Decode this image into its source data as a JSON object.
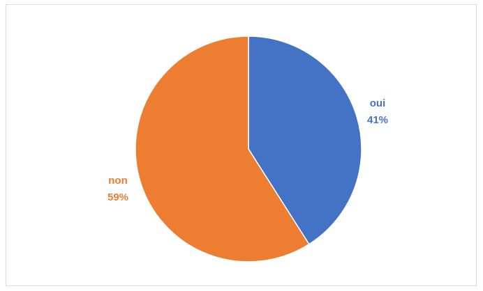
{
  "chart_data": {
    "type": "pie",
    "categories": [
      "oui",
      "non"
    ],
    "values": [
      41,
      59
    ],
    "value_labels": [
      "41%",
      "59%"
    ],
    "colors": [
      "#4472c4",
      "#ed7d31"
    ],
    "legend": false,
    "title": ""
  }
}
